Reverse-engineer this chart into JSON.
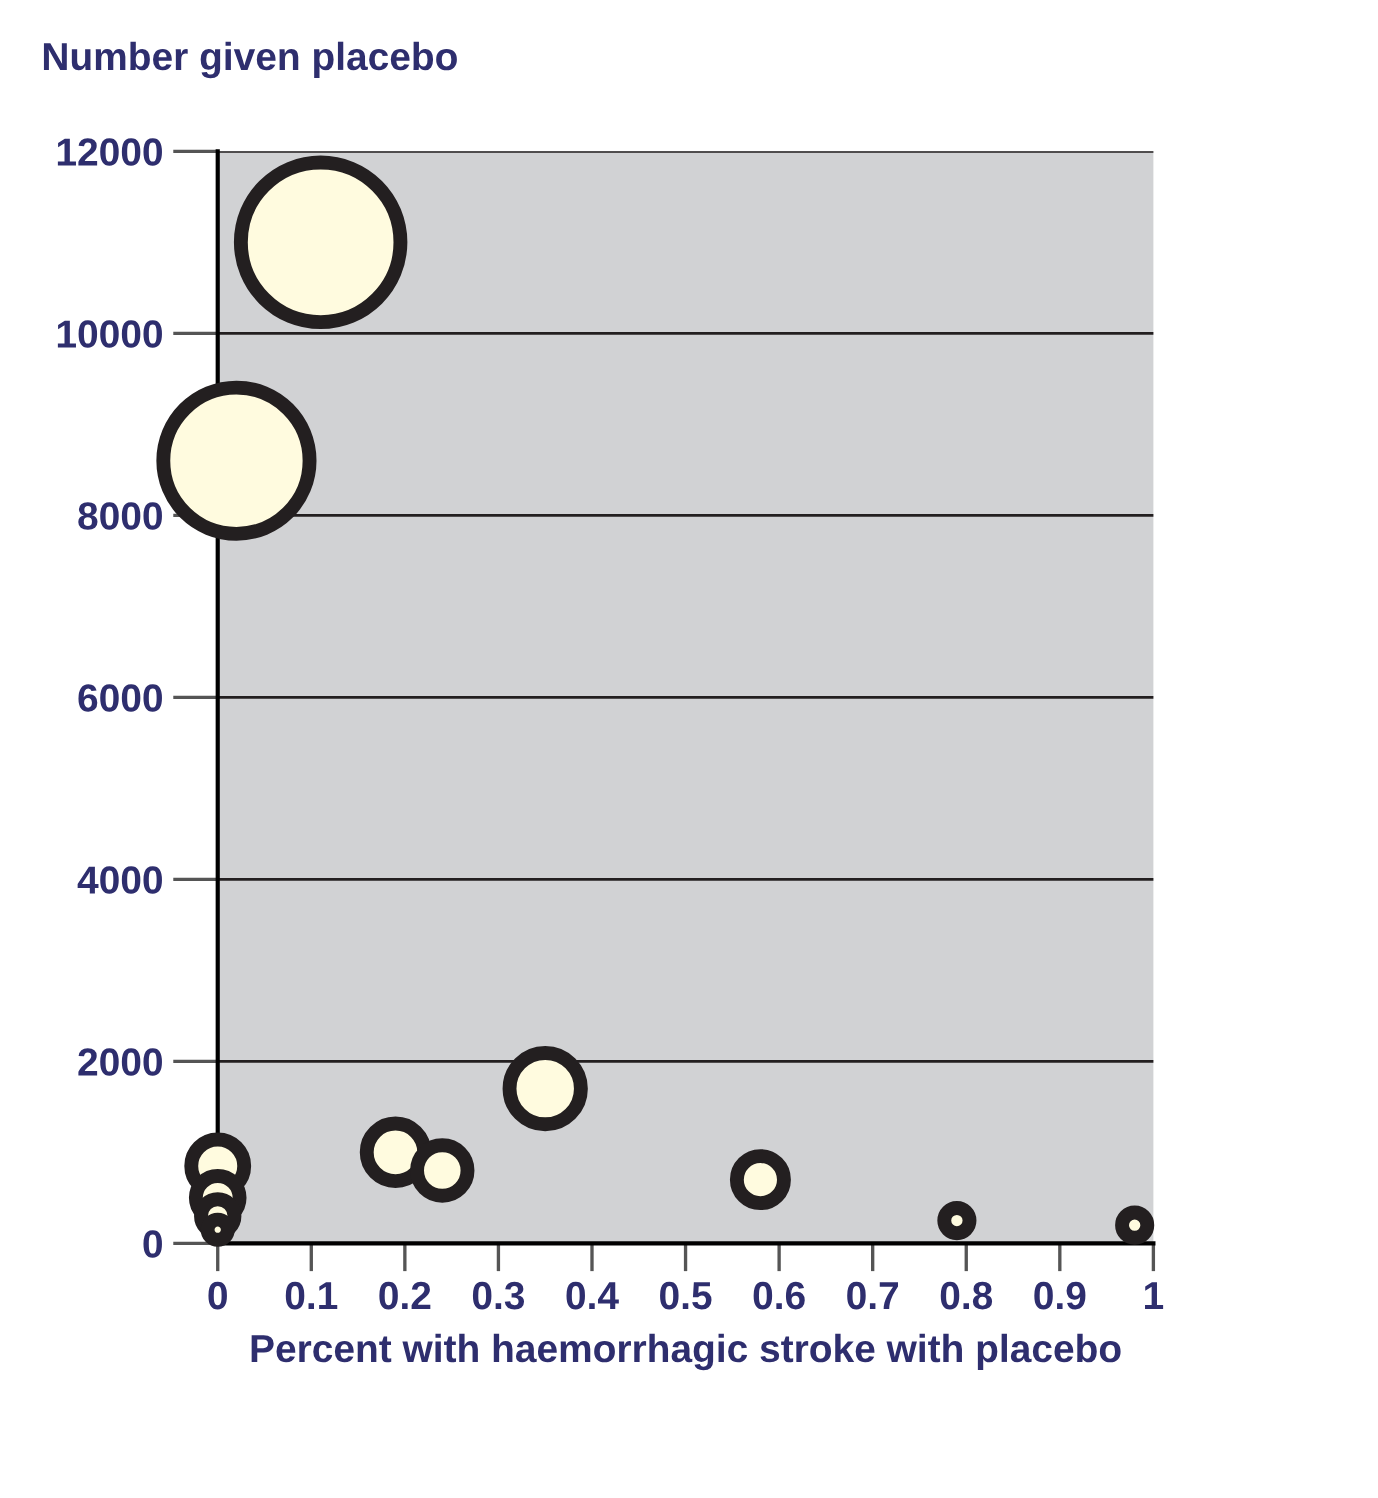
{
  "chart_data": {
    "type": "bubble",
    "ylabel": "Number given placebo",
    "xlabel": "Percent with haemorrhagic stroke with placebo",
    "x": [
      0.11,
      0.02,
      0.35,
      0.19,
      0.24,
      0.58,
      0.79,
      0.98,
      0,
      0,
      0,
      0
    ],
    "values": [
      11000,
      8600,
      1700,
      1000,
      800,
      700,
      250,
      200,
      850,
      500,
      300,
      150
    ],
    "sizes": [
      1,
      0.84,
      0.2,
      0.13,
      0.1,
      0.087,
      0.025,
      0.025,
      0.11,
      0.075,
      0.044,
      0.016
    ],
    "color": "#fffbdf",
    "xlim": [
      0,
      1
    ],
    "ylim": [
      0,
      12000
    ],
    "xticks": [
      0,
      0.1,
      0.2,
      0.3,
      0.4,
      0.5,
      0.6,
      0.7,
      0.8,
      0.9,
      1
    ],
    "yticks": [
      0,
      2000,
      4000,
      6000,
      8000,
      10000,
      12000
    ],
    "grid": "y",
    "legend": false
  }
}
